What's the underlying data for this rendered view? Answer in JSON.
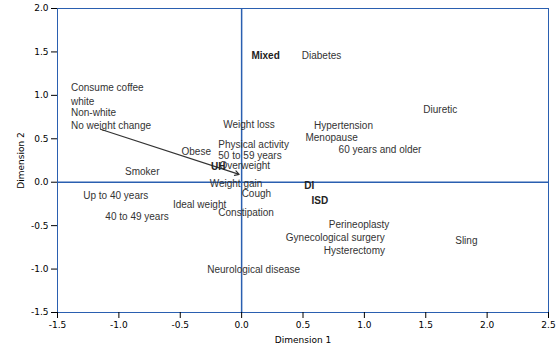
{
  "chart_data": {
    "type": "scatter",
    "x_label": "Dimension 1",
    "y_label": "Dimension 2",
    "xlim": [
      -1.5,
      2.5
    ],
    "xticks": [
      {
        "value": -1.5,
        "label": "-1.5"
      },
      {
        "value": -1,
        "label": "-1.0"
      },
      -0.5,
      {
        "value": 0,
        "label": "0.0"
      },
      0.5,
      {
        "value": 1,
        "label": "1.0"
      },
      1.5,
      {
        "value": 2,
        "label": "2.0"
      },
      2.5
    ],
    "ylim": [
      -1.5,
      2.0
    ],
    "yticks": [
      {
        "value": -1.5,
        "label": "-1.5"
      },
      {
        "value": -1,
        "label": "-1.0"
      },
      -0.5,
      {
        "value": 0,
        "label": "0.0"
      },
      0.5,
      {
        "value": 1,
        "label": "1.0"
      },
      1.5,
      {
        "value": 2,
        "label": "2.0"
      }
    ],
    "color": "#2a5fb0",
    "grid": false,
    "points": [
      {
        "label": "Consume coffee",
        "x": -1.39,
        "y": 1.09
      },
      {
        "label": "white",
        "x": -1.39,
        "y": 0.93
      },
      {
        "label": "Non-white",
        "x": -1.39,
        "y": 0.8
      },
      {
        "label": "No weight change",
        "x": -1.39,
        "y": 0.65
      },
      {
        "label": "Smoker",
        "x": -0.95,
        "y": 0.12
      },
      {
        "label": "Up to 40 years",
        "x": -1.29,
        "y": -0.16
      },
      {
        "label": "40 to 49 years",
        "x": -1.11,
        "y": -0.4
      },
      {
        "label": "Ideal weight",
        "x": -0.56,
        "y": -0.26
      },
      {
        "label": "Obese",
        "x": -0.49,
        "y": 0.35
      },
      {
        "label": "Physical activity",
        "x": -0.19,
        "y": 0.43
      },
      {
        "label": "50 to 59 years",
        "x": -0.19,
        "y": 0.3
      },
      {
        "label": "Overweight",
        "x": -0.18,
        "y": 0.19
      },
      {
        "label": "Weight loss",
        "x": -0.15,
        "y": 0.66
      },
      {
        "label": "Weight gain",
        "x": -0.26,
        "y": -0.02
      },
      {
        "label": "Cough",
        "x": 0.0,
        "y": -0.13
      },
      {
        "label": "Constipation",
        "x": -0.19,
        "y": -0.35
      },
      {
        "label": "Neurological disease",
        "x": -0.28,
        "y": -1.01
      },
      {
        "label": "Diabetes",
        "x": 0.49,
        "y": 1.45
      },
      {
        "label": "Diuretic",
        "x": 1.48,
        "y": 0.83
      },
      {
        "label": "Hypertension",
        "x": 0.59,
        "y": 0.65
      },
      {
        "label": "Menopause",
        "x": 0.52,
        "y": 0.51
      },
      {
        "label": "60 years and older",
        "x": 0.79,
        "y": 0.37
      },
      {
        "label": "Perineoplasty",
        "x": 0.71,
        "y": -0.49
      },
      {
        "label": "Gynecological surgery",
        "x": 0.36,
        "y": -0.64
      },
      {
        "label": "Hysterectomy",
        "x": 0.67,
        "y": -0.79
      },
      {
        "label": "Sling",
        "x": 1.74,
        "y": -0.67
      }
    ],
    "highlight": [
      {
        "label": "Mixed",
        "x": 0.08,
        "y": 1.45
      },
      {
        "label": "UH",
        "x": -0.25,
        "y": 0.18
      },
      {
        "label": "DI",
        "x": 0.51,
        "y": -0.04
      },
      {
        "label": "ISD",
        "x": 0.57,
        "y": -0.21
      }
    ],
    "arrow": {
      "x1": -1.15,
      "y1": 0.61,
      "x2": -0.02,
      "y2": 0.09
    }
  }
}
